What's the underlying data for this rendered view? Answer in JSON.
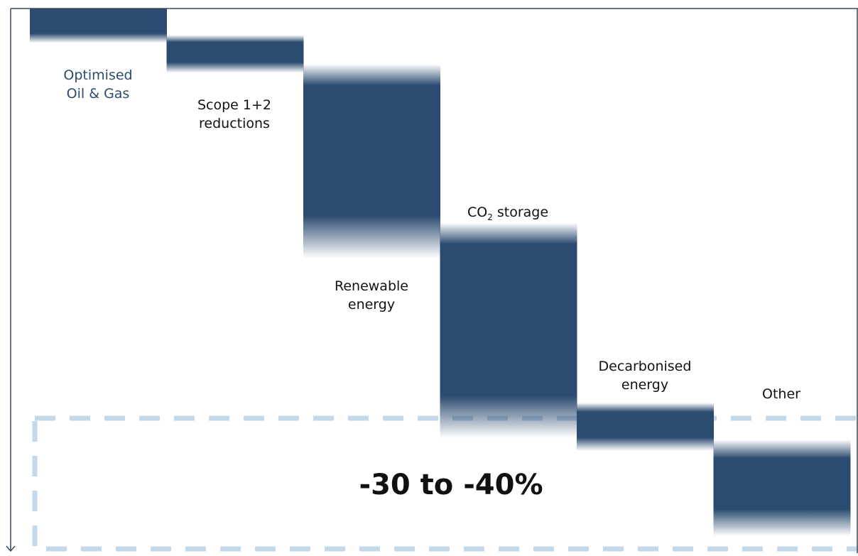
{
  "chart_data": {
    "type": "bar",
    "subtype": "waterfall",
    "orientation": "downward",
    "categories": [
      "Optimised Oil & Gas",
      "Scope 1+2 reductions",
      "Renewable energy",
      "CO2 storage",
      "Decarbonised energy",
      "Other"
    ],
    "labels": [
      {
        "pre": "Optimised",
        "line2": "Oil & Gas"
      },
      {
        "pre": "Scope 1+2",
        "line2": "reductions"
      },
      {
        "pre": "Renewable",
        "line2": "energy"
      },
      {
        "pre": "CO",
        "sub": "2",
        "post": " storage"
      },
      {
        "pre": "Decarbonised",
        "line2": "energy"
      },
      {
        "pre": "Other"
      }
    ],
    "values": [
      -5,
      -5.5,
      -30,
      -34,
      -7,
      -14
    ],
    "target_range_label": "-30 to -40%",
    "colors": {
      "bar": "#2b4b70",
      "target_box": "#c5d8ea",
      "axis": "#3b4a5a"
    }
  }
}
